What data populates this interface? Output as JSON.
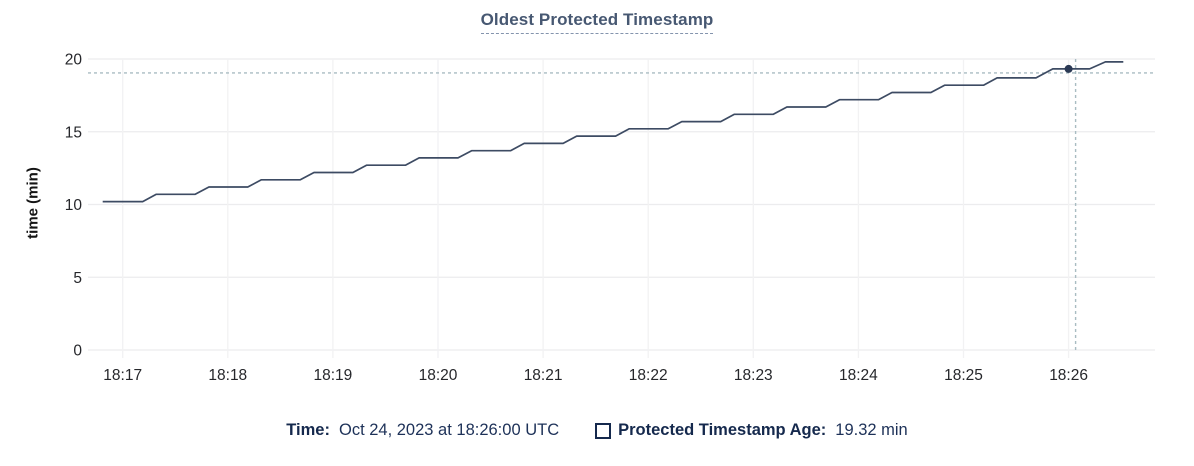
{
  "chart_data": {
    "type": "line",
    "title": "Oldest Protected Timestamp",
    "ylabel": "time (min)",
    "ylim": [
      0,
      20
    ],
    "yticks": [
      0,
      5,
      10,
      15,
      20
    ],
    "xticks": [
      "18:17",
      "18:18",
      "18:19",
      "18:20",
      "18:21",
      "18:22",
      "18:23",
      "18:24",
      "18:25",
      "18:26"
    ],
    "x_unit": "minutes after 18:17 UTC",
    "grid": true,
    "series": [
      {
        "name": "Protected Timestamp Age",
        "points": [
          [
            -0.19,
            10.2
          ],
          [
            0.19,
            10.2
          ],
          [
            0.32,
            10.7
          ],
          [
            0.69,
            10.7
          ],
          [
            0.82,
            11.2
          ],
          [
            1.19,
            11.2
          ],
          [
            1.32,
            11.7
          ],
          [
            1.69,
            11.7
          ],
          [
            1.82,
            12.2
          ],
          [
            2.19,
            12.2
          ],
          [
            2.32,
            12.7
          ],
          [
            2.69,
            12.7
          ],
          [
            2.82,
            13.2
          ],
          [
            3.19,
            13.2
          ],
          [
            3.32,
            13.7
          ],
          [
            3.69,
            13.7
          ],
          [
            3.82,
            14.2
          ],
          [
            4.19,
            14.2
          ],
          [
            4.32,
            14.7
          ],
          [
            4.69,
            14.7
          ],
          [
            4.82,
            15.2
          ],
          [
            5.19,
            15.2
          ],
          [
            5.32,
            15.7
          ],
          [
            5.69,
            15.7
          ],
          [
            5.82,
            16.2
          ],
          [
            6.19,
            16.2
          ],
          [
            6.32,
            16.7
          ],
          [
            6.69,
            16.7
          ],
          [
            6.82,
            17.2
          ],
          [
            7.19,
            17.2
          ],
          [
            7.32,
            17.7
          ],
          [
            7.69,
            17.7
          ],
          [
            7.82,
            18.2
          ],
          [
            8.19,
            18.2
          ],
          [
            8.32,
            18.7
          ],
          [
            8.69,
            18.7
          ],
          [
            8.85,
            19.32
          ],
          [
            9.2,
            19.32
          ],
          [
            9.35,
            19.8
          ],
          [
            9.52,
            19.8
          ]
        ]
      }
    ],
    "hover": {
      "x_t": 9.0,
      "value": 19.32,
      "time_tick": "18:26"
    }
  },
  "legend": {
    "time_label": "Time:",
    "time_value": "Oct 24, 2023 at 18:26:00 UTC",
    "series_label": "Protected Timestamp Age:",
    "series_value": "19.32 min"
  },
  "colors": {
    "line": "#3d4b63",
    "dot": "#2b3a55",
    "crosshair": "#a9bcc2",
    "grid_h": "#ececee",
    "grid_v": "#f2f2f3",
    "tick_text": "#26272b",
    "title": "#475872",
    "navy": "#15294d"
  }
}
